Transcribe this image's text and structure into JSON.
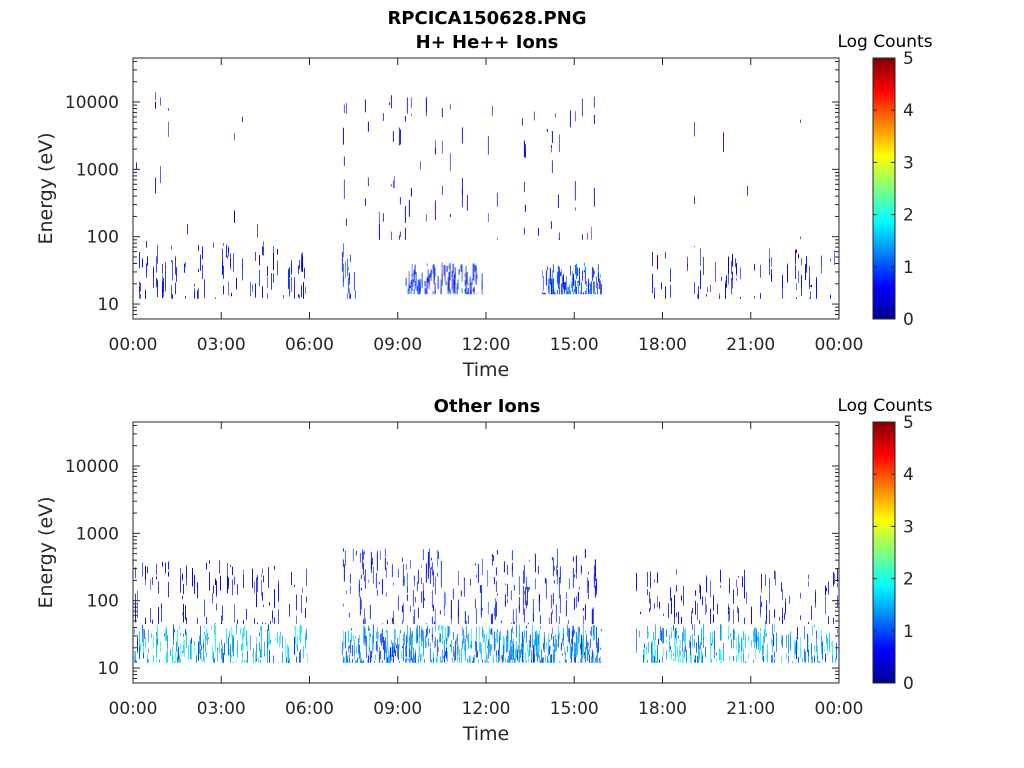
{
  "figure": {
    "title_line1": "RPCICA150628.PNG"
  },
  "chart_data": [
    {
      "type": "heatmap",
      "title": "H+ He++ Ions",
      "xlabel": "Time",
      "ylabel": "Energy (eV)",
      "x_ticks": [
        "00:00",
        "03:00",
        "06:00",
        "09:00",
        "12:00",
        "15:00",
        "18:00",
        "21:00",
        "00:00"
      ],
      "x_range_hours": [
        0,
        24
      ],
      "yscale": "log",
      "y_range": [
        6,
        45000
      ],
      "y_ticks": [
        {
          "value": 10,
          "label": "10"
        },
        {
          "value": 100,
          "label": "100"
        },
        {
          "value": 1000,
          "label": "1000"
        },
        {
          "value": 10000,
          "label": "10000"
        }
      ],
      "colorbar": {
        "label": "Log Counts",
        "range": [
          0,
          5
        ],
        "ticks": [
          "0",
          "1",
          "2",
          "3",
          "4",
          "5"
        ],
        "colormap": "jet"
      },
      "data_gaps_hours": [
        [
          5.95,
          7.1
        ],
        [
          15.95,
          17.1
        ]
      ],
      "regions": [
        {
          "t": [
            0.0,
            5.95
          ],
          "energy_eV": [
            12,
            90
          ],
          "level": 0.6,
          "density": 0.25
        },
        {
          "t": [
            0.0,
            5.95
          ],
          "energy_eV": [
            90,
            15000
          ],
          "level": 0.3,
          "density": 0.03
        },
        {
          "t": [
            7.1,
            7.6
          ],
          "energy_eV": [
            12,
            90
          ],
          "level": 0.9,
          "density": 0.5
        },
        {
          "t": [
            7.1,
            15.95
          ],
          "energy_eV": [
            90,
            14000
          ],
          "level": 0.4,
          "density": 0.12
        },
        {
          "t": [
            9.2,
            12.0
          ],
          "energy_eV": [
            14,
            42
          ],
          "level": 0.8,
          "density": 0.55
        },
        {
          "t": [
            13.9,
            15.95
          ],
          "energy_eV": [
            14,
            42
          ],
          "level": 1.0,
          "density": 0.8
        },
        {
          "t": [
            17.1,
            24.0
          ],
          "energy_eV": [
            12,
            70
          ],
          "level": 0.6,
          "density": 0.2
        },
        {
          "t": [
            17.1,
            24.0
          ],
          "energy_eV": [
            70,
            15000
          ],
          "level": 0.3,
          "density": 0.03
        }
      ]
    },
    {
      "type": "heatmap",
      "title": "Other Ions",
      "xlabel": "Time",
      "ylabel": "Energy (eV)",
      "x_ticks": [
        "00:00",
        "03:00",
        "06:00",
        "09:00",
        "12:00",
        "15:00",
        "18:00",
        "21:00",
        "00:00"
      ],
      "x_range_hours": [
        0,
        24
      ],
      "yscale": "log",
      "y_range": [
        6,
        45000
      ],
      "y_ticks": [
        {
          "value": 10,
          "label": "10"
        },
        {
          "value": 100,
          "label": "100"
        },
        {
          "value": 1000,
          "label": "1000"
        },
        {
          "value": 10000,
          "label": "10000"
        }
      ],
      "colorbar": {
        "label": "Log Counts",
        "range": [
          0,
          5
        ],
        "ticks": [
          "0",
          "1",
          "2",
          "3",
          "4",
          "5"
        ],
        "colormap": "jet"
      },
      "data_gaps_hours": [
        [
          5.95,
          7.1
        ],
        [
          15.95,
          17.1
        ]
      ],
      "regions": [
        {
          "t": [
            0.0,
            5.95
          ],
          "energy_eV": [
            12,
            45
          ],
          "level": 1.6,
          "density": 0.55
        },
        {
          "t": [
            0.0,
            5.95
          ],
          "energy_eV": [
            45,
            400
          ],
          "level": 0.6,
          "density": 0.25
        },
        {
          "t": [
            7.1,
            15.95
          ],
          "energy_eV": [
            12,
            45
          ],
          "level": 1.3,
          "density": 0.9
        },
        {
          "t": [
            7.1,
            15.95
          ],
          "energy_eV": [
            45,
            600
          ],
          "level": 0.7,
          "density": 0.45
        },
        {
          "t": [
            17.1,
            24.0
          ],
          "energy_eV": [
            12,
            45
          ],
          "level": 1.5,
          "density": 0.55
        },
        {
          "t": [
            17.1,
            24.0
          ],
          "energy_eV": [
            45,
            300
          ],
          "level": 0.6,
          "density": 0.25
        }
      ]
    }
  ]
}
